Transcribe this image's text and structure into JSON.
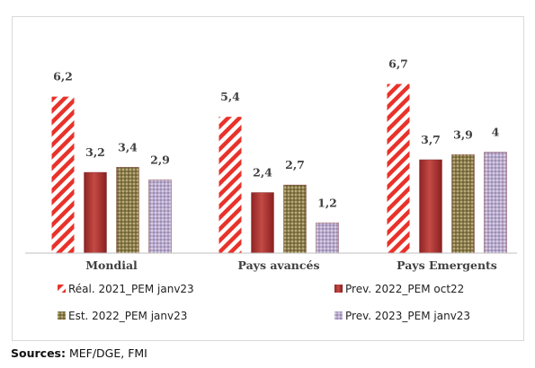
{
  "chart_data": {
    "type": "bar",
    "categories": [
      "Mondial",
      "Pays avancés",
      "Pays Emergents"
    ],
    "series": [
      {
        "name": "Réal. 2021_PEM janv23",
        "values": [
          6.2,
          5.4,
          6.7
        ],
        "labels": [
          "6,2",
          "5,4",
          "6,7"
        ],
        "color": "#e8322a",
        "pattern": "red-white-diagonal-stripes"
      },
      {
        "name": "Prev. 2022_PEM oct22",
        "values": [
          3.2,
          2.4,
          3.7
        ],
        "labels": [
          "3,2",
          "2,4",
          "3,7"
        ],
        "color": "#a52a2a",
        "pattern": "solid-gradient"
      },
      {
        "name": "Est. 2022_PEM janv23",
        "values": [
          3.4,
          2.7,
          3.9
        ],
        "labels": [
          "3,4",
          "2,7",
          "3,9"
        ],
        "color": "#8a7a48",
        "pattern": "olive-dotted"
      },
      {
        "name": "Prev. 2023_PEM janv23",
        "values": [
          2.9,
          1.2,
          4.0
        ],
        "labels": [
          "2,9",
          "1,2",
          "4"
        ],
        "color": "#b6a8cc",
        "pattern": "lavender-dotted"
      }
    ],
    "ylim": [
      0,
      7.5
    ],
    "legend": "bottom",
    "grid": false
  },
  "sources": {
    "label": "Sources:",
    "text": " MEF/DGE, FMI"
  }
}
